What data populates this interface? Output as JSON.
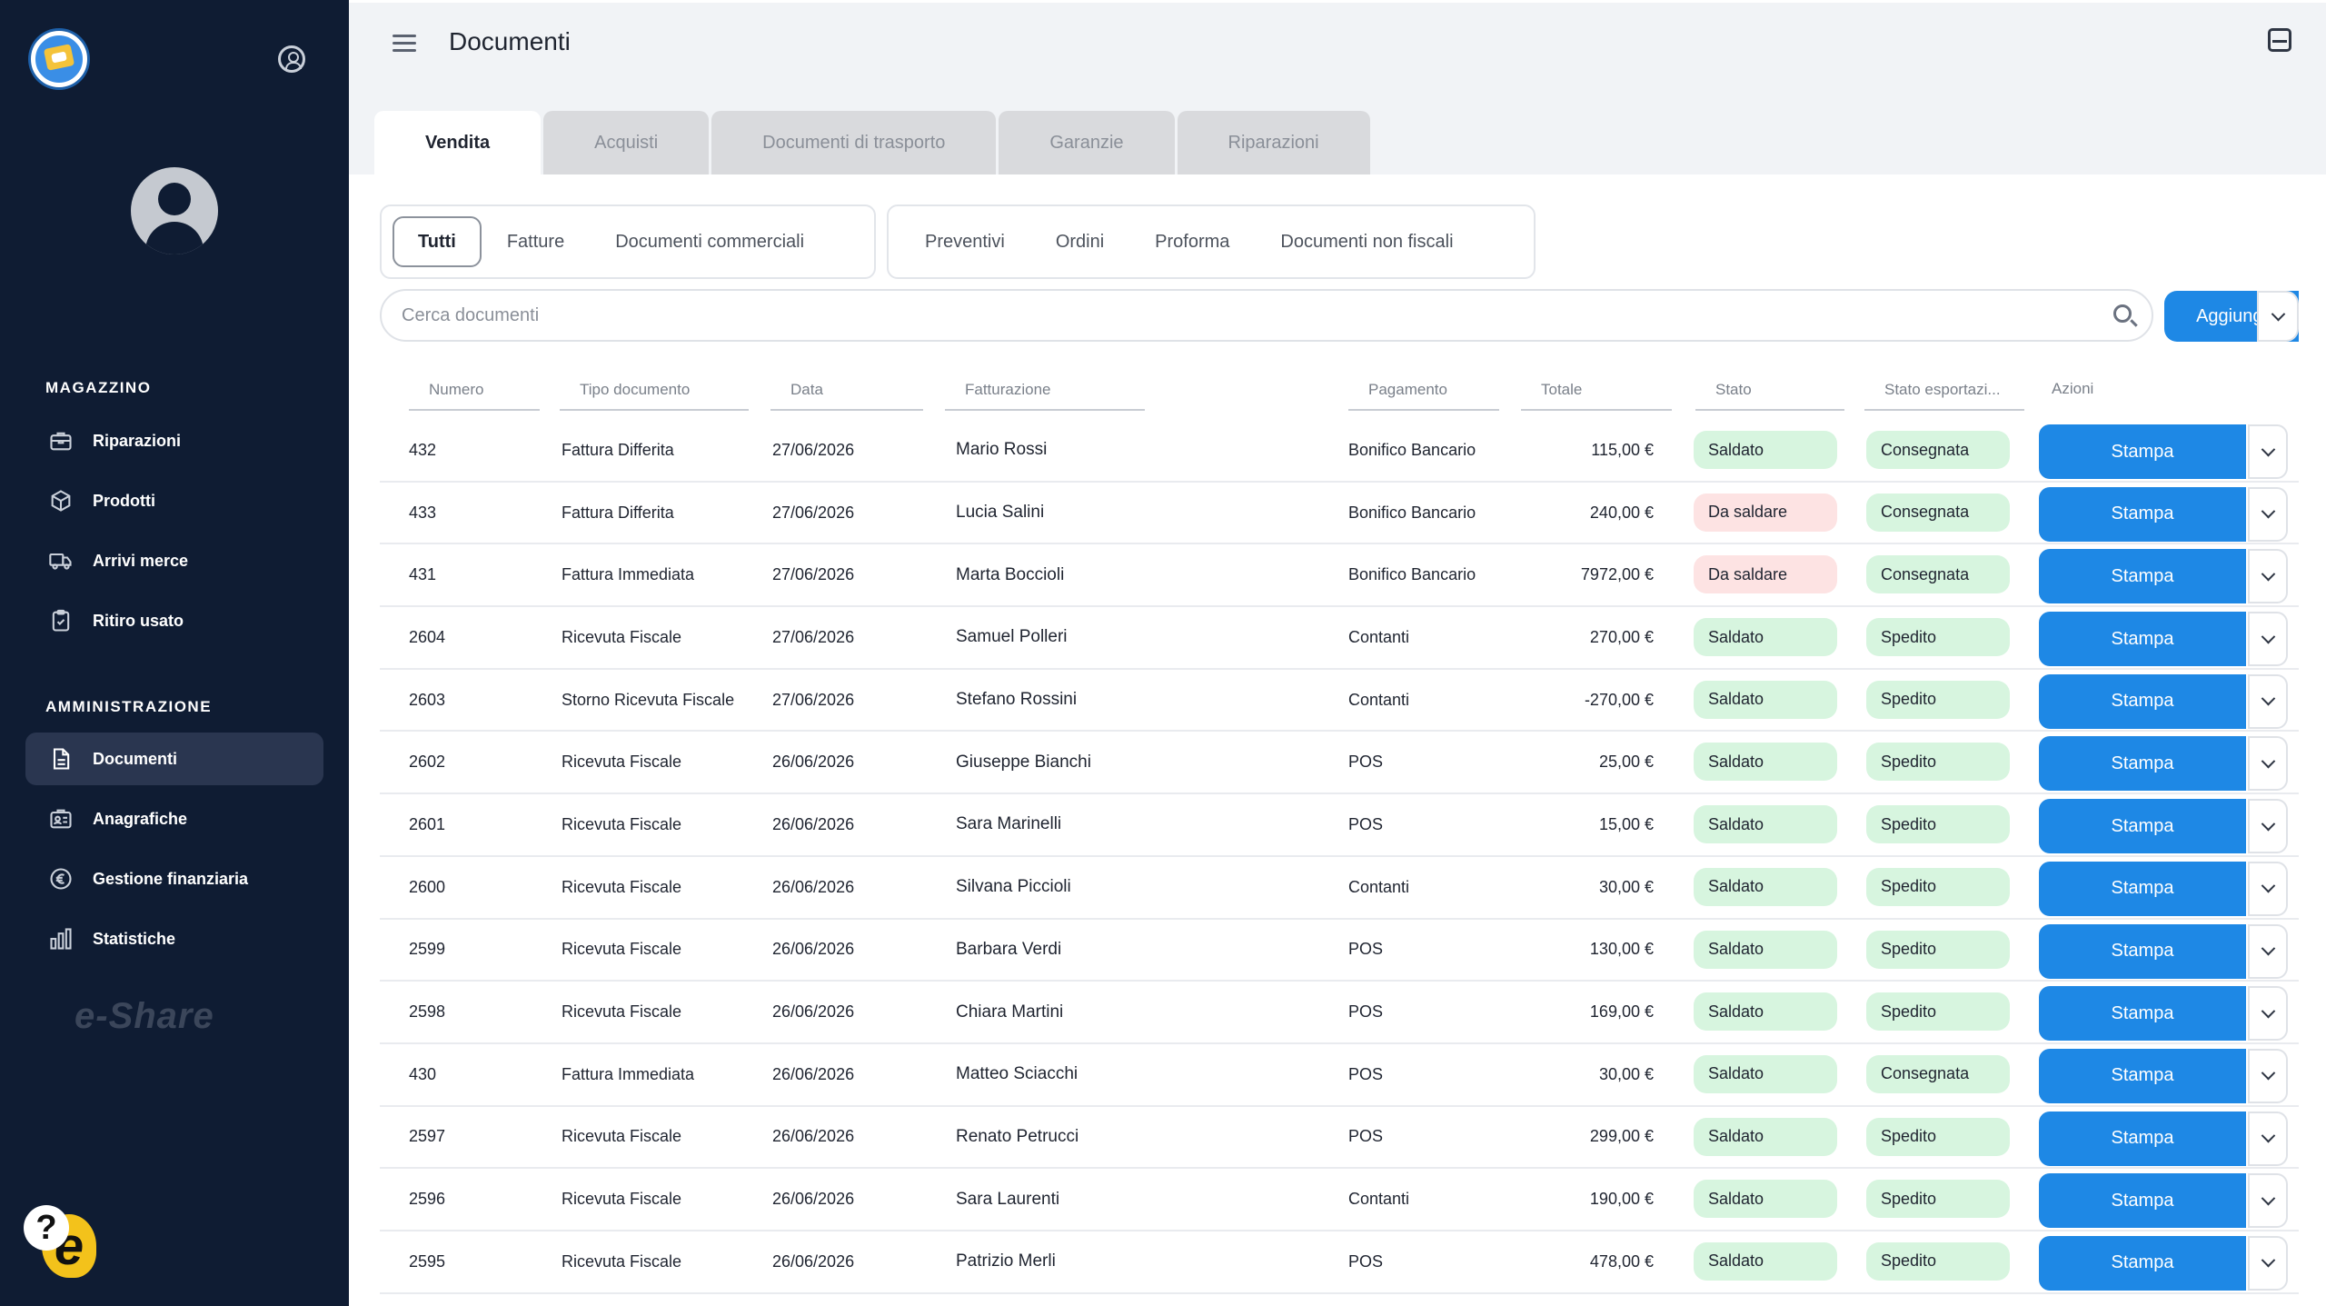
{
  "header": {
    "title": "Documenti"
  },
  "sidebar": {
    "sections": [
      {
        "title": "MAGAZZINO",
        "items": [
          {
            "label": "Riparazioni",
            "icon": "toolbox-icon"
          },
          {
            "label": "Prodotti",
            "icon": "box-icon"
          },
          {
            "label": "Arrivi merce",
            "icon": "truck-icon"
          },
          {
            "label": "Ritiro usato",
            "icon": "clipboard-icon"
          }
        ]
      },
      {
        "title": "AMMINISTRAZIONE",
        "items": [
          {
            "label": "Documenti",
            "icon": "document-icon",
            "active": true
          },
          {
            "label": "Anagrafiche",
            "icon": "contacts-icon"
          },
          {
            "label": "Gestione finanziaria",
            "icon": "euro-icon"
          },
          {
            "label": "Statistiche",
            "icon": "bar-chart-icon"
          }
        ]
      }
    ],
    "brand": "e-Share"
  },
  "tabs": [
    "Vendita",
    "Acquisti",
    "Documenti di trasporto",
    "Garanzie",
    "Riparazioni"
  ],
  "filters": {
    "group1": [
      "Tutti",
      "Fatture",
      "Documenti commerciali"
    ],
    "group2": [
      "Preventivi",
      "Ordini",
      "Proforma",
      "Documenti non fiscali"
    ]
  },
  "search": {
    "placeholder": "Cerca documenti"
  },
  "add_button": "Aggiungi",
  "table": {
    "columns": [
      "Numero",
      "Tipo documento",
      "Data",
      "Fatturazione",
      "Pagamento",
      "Totale",
      "Stato",
      "Stato esportazi...",
      "Azioni"
    ],
    "action_label": "Stampa",
    "rows": [
      {
        "numero": "432",
        "tipo": "Fattura Differita",
        "data": "27/06/2026",
        "cliente": "Mario Rossi",
        "pagamento": "Bonifico Bancario",
        "totale": "115,00 €",
        "stato": "Saldato",
        "export": "Consegnata"
      },
      {
        "numero": "433",
        "tipo": "Fattura Differita",
        "data": "27/06/2026",
        "cliente": "Lucia Salini",
        "pagamento": "Bonifico Bancario",
        "totale": "240,00 €",
        "stato": "Da saldare",
        "export": "Consegnata"
      },
      {
        "numero": "431",
        "tipo": "Fattura Immediata",
        "data": "27/06/2026",
        "cliente": "Marta Boccioli",
        "pagamento": "Bonifico Bancario",
        "totale": "7972,00 €",
        "stato": "Da saldare",
        "export": "Consegnata"
      },
      {
        "numero": "2604",
        "tipo": "Ricevuta Fiscale",
        "data": "27/06/2026",
        "cliente": "Samuel Polleri",
        "pagamento": "Contanti",
        "totale": "270,00 €",
        "stato": "Saldato",
        "export": "Spedito"
      },
      {
        "numero": "2603",
        "tipo": "Storno Ricevuta Fiscale",
        "data": "27/06/2026",
        "cliente": "Stefano Rossini",
        "pagamento": "Contanti",
        "totale": "-270,00 €",
        "stato": "Saldato",
        "export": "Spedito"
      },
      {
        "numero": "2602",
        "tipo": "Ricevuta Fiscale",
        "data": "26/06/2026",
        "cliente": "Giuseppe Bianchi",
        "pagamento": "POS",
        "totale": "25,00 €",
        "stato": "Saldato",
        "export": "Spedito"
      },
      {
        "numero": "2601",
        "tipo": "Ricevuta Fiscale",
        "data": "26/06/2026",
        "cliente": "Sara Marinelli",
        "pagamento": "POS",
        "totale": "15,00 €",
        "stato": "Saldato",
        "export": "Spedito"
      },
      {
        "numero": "2600",
        "tipo": "Ricevuta Fiscale",
        "data": "26/06/2026",
        "cliente": "Silvana Piccioli",
        "pagamento": "Contanti",
        "totale": "30,00 €",
        "stato": "Saldato",
        "export": "Spedito"
      },
      {
        "numero": "2599",
        "tipo": "Ricevuta Fiscale",
        "data": "26/06/2026",
        "cliente": "Barbara Verdi",
        "pagamento": "POS",
        "totale": "130,00 €",
        "stato": "Saldato",
        "export": "Spedito"
      },
      {
        "numero": "2598",
        "tipo": "Ricevuta Fiscale",
        "data": "26/06/2026",
        "cliente": "Chiara Martini",
        "pagamento": "POS",
        "totale": "169,00 €",
        "stato": "Saldato",
        "export": "Spedito"
      },
      {
        "numero": "430",
        "tipo": "Fattura Immediata",
        "data": "26/06/2026",
        "cliente": "Matteo Sciacchi",
        "pagamento": "POS",
        "totale": "30,00 €",
        "stato": "Saldato",
        "export": "Consegnata"
      },
      {
        "numero": "2597",
        "tipo": "Ricevuta Fiscale",
        "data": "26/06/2026",
        "cliente": "Renato Petrucci",
        "pagamento": "POS",
        "totale": "299,00 €",
        "stato": "Saldato",
        "export": "Spedito"
      },
      {
        "numero": "2596",
        "tipo": "Ricevuta Fiscale",
        "data": "26/06/2026",
        "cliente": "Sara Laurenti",
        "pagamento": "Contanti",
        "totale": "190,00 €",
        "stato": "Saldato",
        "export": "Spedito"
      },
      {
        "numero": "2595",
        "tipo": "Ricevuta Fiscale",
        "data": "26/06/2026",
        "cliente": "Patrizio Merli",
        "pagamento": "POS",
        "totale": "478,00 €",
        "stato": "Saldato",
        "export": "Spedito"
      }
    ]
  },
  "colors": {
    "sidebar_bg": "#0f1c33",
    "accent": "#1e88e5",
    "paid": "#d7f5df",
    "unpaid": "#fde3e3"
  }
}
